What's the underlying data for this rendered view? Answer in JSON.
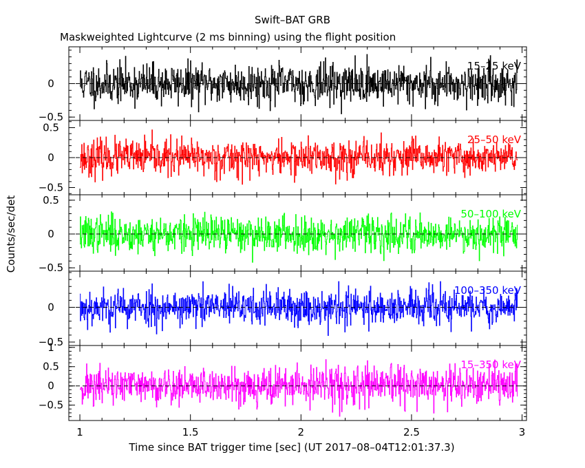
{
  "chart_data": {
    "type": "line",
    "title": "Swift–BAT GRB",
    "subtitle": "Maskweighted Lightcurve (2 ms binning) using the flight position",
    "xlabel": "Time since BAT trigger time [sec] (UT 2017–08–04T12:01:37.3)",
    "ylabel": "Counts/sec/det",
    "xlim": [
      0.95,
      3.02
    ],
    "x_ticks": [
      1,
      1.5,
      2,
      2.5,
      3
    ],
    "x_tick_labels": [
      "1",
      "1.5",
      "2",
      "2.5",
      "3"
    ],
    "data_x_range": [
      1.0,
      2.98
    ],
    "bin_width_sec": 0.002,
    "grid": false,
    "panels": [
      {
        "name": "15–25 keV",
        "color": "#000000",
        "ylim": [
          -0.55,
          0.55
        ],
        "y_ticks": [
          0,
          -0.5
        ],
        "y_tick_labels": [
          "0",
          "−0.5"
        ],
        "noise_amplitude": 0.3,
        "seed": 11
      },
      {
        "name": "25–50 keV",
        "color": "#ff0000",
        "ylim": [
          -0.62,
          0.62
        ],
        "y_ticks": [
          0.5,
          0,
          -0.5
        ],
        "y_tick_labels": [
          "0.5",
          "0",
          "−0.5"
        ],
        "noise_amplitude": 0.3,
        "seed": 23
      },
      {
        "name": "50–100 keV",
        "color": "#00ff00",
        "ylim": [
          -0.55,
          0.58
        ],
        "y_ticks": [
          0.5,
          0,
          -0.5
        ],
        "y_tick_labels": [
          "0.5",
          "0",
          "−0.5"
        ],
        "noise_amplitude": 0.27,
        "seed": 37
      },
      {
        "name": "100–350 keV",
        "color": "#0000ff",
        "ylim": [
          -0.55,
          0.52
        ],
        "y_ticks": [
          0,
          -0.5
        ],
        "y_tick_labels": [
          "0",
          "−0.5"
        ],
        "noise_amplitude": 0.27,
        "seed": 53
      },
      {
        "name": "15–350 keV",
        "color": "#ff00ff",
        "ylim": [
          -0.9,
          1.05
        ],
        "y_ticks": [
          1,
          0.5,
          0,
          -0.5
        ],
        "y_tick_labels": [
          "1",
          "0.5",
          "0",
          "−0.5"
        ],
        "noise_amplitude": 0.5,
        "seed": 71
      }
    ]
  }
}
